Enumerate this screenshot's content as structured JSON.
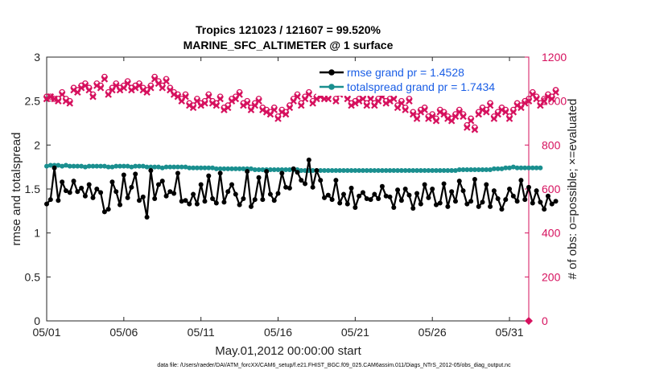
{
  "chart_data": {
    "type": "line",
    "title": "Tropics 121023 / 121607 = 99.520%",
    "subtitle": "MARINE_SFC_ALTIMETER @ 1 surface",
    "xlabel": "May.01,2012 00:00:00 start",
    "ylabel": "rmse and totalspread",
    "ylabel_right": "# of obs: o=possible; ×=evaluated",
    "x_range": [
      0.0,
      31.25
    ],
    "xtick_labels": [
      "05/01",
      "05/06",
      "05/11",
      "05/16",
      "05/21",
      "05/26",
      "05/31"
    ],
    "ylim": [
      0,
      3
    ],
    "yticks": [
      "0",
      "0.5",
      "1",
      "1.5",
      "2",
      "2.5",
      "3"
    ],
    "ylim_right": [
      0,
      1200
    ],
    "yticks_right": [
      "0",
      "200",
      "400",
      "600",
      "800",
      "1000",
      "1200"
    ],
    "legend_position": "top-right",
    "grid": false,
    "colors": {
      "rmse": "#000000",
      "totalspread": "#1a8f8f",
      "obs": "#d6115e",
      "legend_text": "#1a5ee6"
    },
    "series": [
      {
        "name": "rmse grand pr = 1.4528",
        "axis": "left",
        "x_step": 0.25,
        "values": [
          1.33,
          1.38,
          1.74,
          1.37,
          1.58,
          1.48,
          1.46,
          1.59,
          1.47,
          1.51,
          1.42,
          1.55,
          1.4,
          1.5,
          1.46,
          1.24,
          1.27,
          1.58,
          1.47,
          1.32,
          1.66,
          1.4,
          1.52,
          1.67,
          1.37,
          1.41,
          1.18,
          1.71,
          1.39,
          1.55,
          1.59,
          1.42,
          1.47,
          1.45,
          1.68,
          1.36,
          1.37,
          1.33,
          1.44,
          1.33,
          1.55,
          1.36,
          1.65,
          1.39,
          1.34,
          1.68,
          1.35,
          1.47,
          1.55,
          1.44,
          1.32,
          1.39,
          1.7,
          1.3,
          1.38,
          1.63,
          1.38,
          1.7,
          1.44,
          1.37,
          1.45,
          1.68,
          1.52,
          1.51,
          1.73,
          1.69,
          1.6,
          1.56,
          1.83,
          1.52,
          1.71,
          1.6,
          1.4,
          1.43,
          1.38,
          1.6,
          1.34,
          1.44,
          1.33,
          1.51,
          1.29,
          1.42,
          1.46,
          1.39,
          1.38,
          1.44,
          1.39,
          1.53,
          1.42,
          1.41,
          1.29,
          1.49,
          1.37,
          1.5,
          1.43,
          1.28,
          1.45,
          1.33,
          1.55,
          1.4,
          1.5,
          1.32,
          1.34,
          1.56,
          1.3,
          1.47,
          1.36,
          1.59,
          1.48,
          1.33,
          1.36,
          1.61,
          1.3,
          1.35,
          1.55,
          1.3,
          1.48,
          1.39,
          1.27,
          1.38,
          1.5,
          1.42,
          1.36,
          1.6,
          1.38,
          1.52,
          1.34,
          1.48,
          1.35,
          1.27,
          1.42,
          1.33,
          1.36
        ]
      },
      {
        "name": "totalspread grand pr = 1.7434",
        "axis": "left",
        "x_step": 0.25,
        "values": [
          1.76,
          1.77,
          1.77,
          1.77,
          1.76,
          1.77,
          1.76,
          1.76,
          1.76,
          1.76,
          1.75,
          1.76,
          1.76,
          1.76,
          1.76,
          1.76,
          1.75,
          1.75,
          1.76,
          1.76,
          1.76,
          1.76,
          1.75,
          1.76,
          1.76,
          1.76,
          1.75,
          1.75,
          1.75,
          1.75,
          1.74,
          1.75,
          1.75,
          1.75,
          1.75,
          1.75,
          1.75,
          1.74,
          1.74,
          1.74,
          1.74,
          1.74,
          1.74,
          1.74,
          1.73,
          1.73,
          1.73,
          1.73,
          1.73,
          1.73,
          1.73,
          1.73,
          1.73,
          1.73,
          1.72,
          1.72,
          1.72,
          1.72,
          1.72,
          1.72,
          1.72,
          1.72,
          1.72,
          1.72,
          1.72,
          1.72,
          1.71,
          1.71,
          1.71,
          1.71,
          1.71,
          1.71,
          1.71,
          1.71,
          1.71,
          1.71,
          1.71,
          1.71,
          1.71,
          1.71,
          1.71,
          1.71,
          1.71,
          1.71,
          1.71,
          1.71,
          1.71,
          1.71,
          1.71,
          1.71,
          1.71,
          1.71,
          1.71,
          1.71,
          1.71,
          1.71,
          1.71,
          1.71,
          1.71,
          1.71,
          1.71,
          1.71,
          1.71,
          1.71,
          1.71,
          1.71,
          1.71,
          1.72,
          1.72,
          1.72,
          1.72,
          1.72,
          1.72,
          1.72,
          1.72,
          1.72,
          1.73,
          1.73,
          1.73,
          1.74,
          1.74,
          1.75,
          1.74,
          1.74,
          1.74,
          1.74,
          1.74,
          1.74,
          1.74
        ]
      },
      {
        "axis": "right",
        "x_step": 0.25,
        "values": [
          1010,
          1020,
          1010,
          1000,
          1030,
          1000,
          990,
          1050,
          1040,
          1060,
          1070,
          1050,
          1020,
          1070,
          1060,
          1100,
          1030,
          1050,
          1070,
          1050,
          1060,
          1080,
          1050,
          1060,
          1070,
          1050,
          1040,
          1060,
          1100,
          1080,
          1060,
          1090,
          1050,
          1030,
          1020,
          1000,
          1020,
          980,
          970,
          1000,
          980,
          990,
          1020,
          990,
          980,
          1010,
          960,
          970,
          1000,
          1010,
          1030,
          980,
          990,
          960,
          980,
          1000,
          960,
          950,
          940,
          960,
          920,
          950,
          940,
          970,
          1000,
          1020,
          980,
          1010,
          1030,
          990,
          1010,
          1020,
          1010,
          1010,
          1040,
          1000,
          1030,
          1050,
          1010,
          980,
          990,
          1000,
          1010,
          980,
          1010,
          980,
          1000,
          1020,
          990,
          1000,
          1010,
          970,
          990,
          960,
          1000,
          940,
          920,
          950,
          960,
          920,
          930,
          910,
          950,
          940,
          920,
          910,
          930,
          950,
          930,
          880,
          910,
          870,
          940,
          960,
          950,
          980,
          920,
          940,
          960,
          950,
          920,
          950,
          980,
          970,
          990,
          1000,
          1030,
          1010,
          980,
          1000,
          1020,
          1010,
          1040
        ]
      },
      {
        "axis": "right",
        "x_step": 0.25,
        "values": [
          1020,
          1020,
          1010,
          1010,
          1040,
          1010,
          1000,
          1060,
          1050,
          1070,
          1080,
          1060,
          1030,
          1080,
          1070,
          1110,
          1040,
          1060,
          1080,
          1060,
          1070,
          1090,
          1060,
          1070,
          1080,
          1060,
          1050,
          1070,
          1110,
          1090,
          1070,
          1100,
          1060,
          1040,
          1030,
          1010,
          1030,
          990,
          980,
          1010,
          990,
          1000,
          1030,
          1000,
          990,
          1020,
          970,
          980,
          1010,
          1020,
          1040,
          990,
          1000,
          970,
          990,
          1010,
          970,
          960,
          950,
          970,
          930,
          960,
          950,
          980,
          1010,
          1030,
          990,
          1020,
          1040,
          1000,
          1020,
          1030,
          1020,
          1020,
          1050,
          1010,
          1040,
          1060,
          1020,
          990,
          1000,
          1010,
          1020,
          990,
          1020,
          990,
          1010,
          1030,
          1000,
          1010,
          1020,
          980,
          1000,
          970,
          1010,
          950,
          930,
          960,
          970,
          930,
          940,
          920,
          960,
          950,
          930,
          920,
          940,
          960,
          940,
          890,
          920,
          880,
          950,
          970,
          960,
          990,
          930,
          950,
          970,
          960,
          930,
          960,
          990,
          980,
          1000,
          1010,
          1040,
          1020,
          990,
          1010,
          1030,
          1020,
          1050
        ]
      }
    ]
  },
  "footnote": "data file: /Users/raeder/DAI/ATM_forcXX/CAM6_setup/f.e21.FHIST_BGC.f09_025.CAM6assim.011/Diags_NTrS_2012-05/obs_diag_output.nc"
}
